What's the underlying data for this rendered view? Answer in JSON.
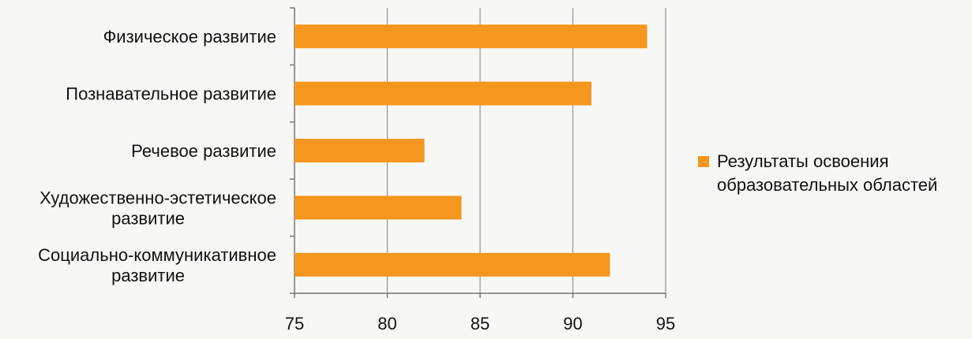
{
  "chart_data": {
    "type": "bar",
    "orientation": "horizontal",
    "categories": [
      [
        "Физическое развитие"
      ],
      [
        "Познавательное развитие"
      ],
      [
        "Речевое развитие"
      ],
      [
        "Художественно-эстетическое",
        "развитие"
      ],
      [
        "Социально-коммуникативное",
        "развитие"
      ]
    ],
    "series": [
      {
        "name": "Результаты освоения образовательных областей",
        "values": [
          94,
          91,
          82,
          84,
          92
        ],
        "color": "#f5961e"
      }
    ],
    "xlim": [
      75,
      95
    ],
    "xticks": [
      "75",
      "80",
      "85",
      "90",
      "95"
    ],
    "grid": "vertical",
    "legend": "right"
  },
  "legend": {
    "lines": [
      "Результаты освоения",
      "образовательных областей"
    ]
  }
}
